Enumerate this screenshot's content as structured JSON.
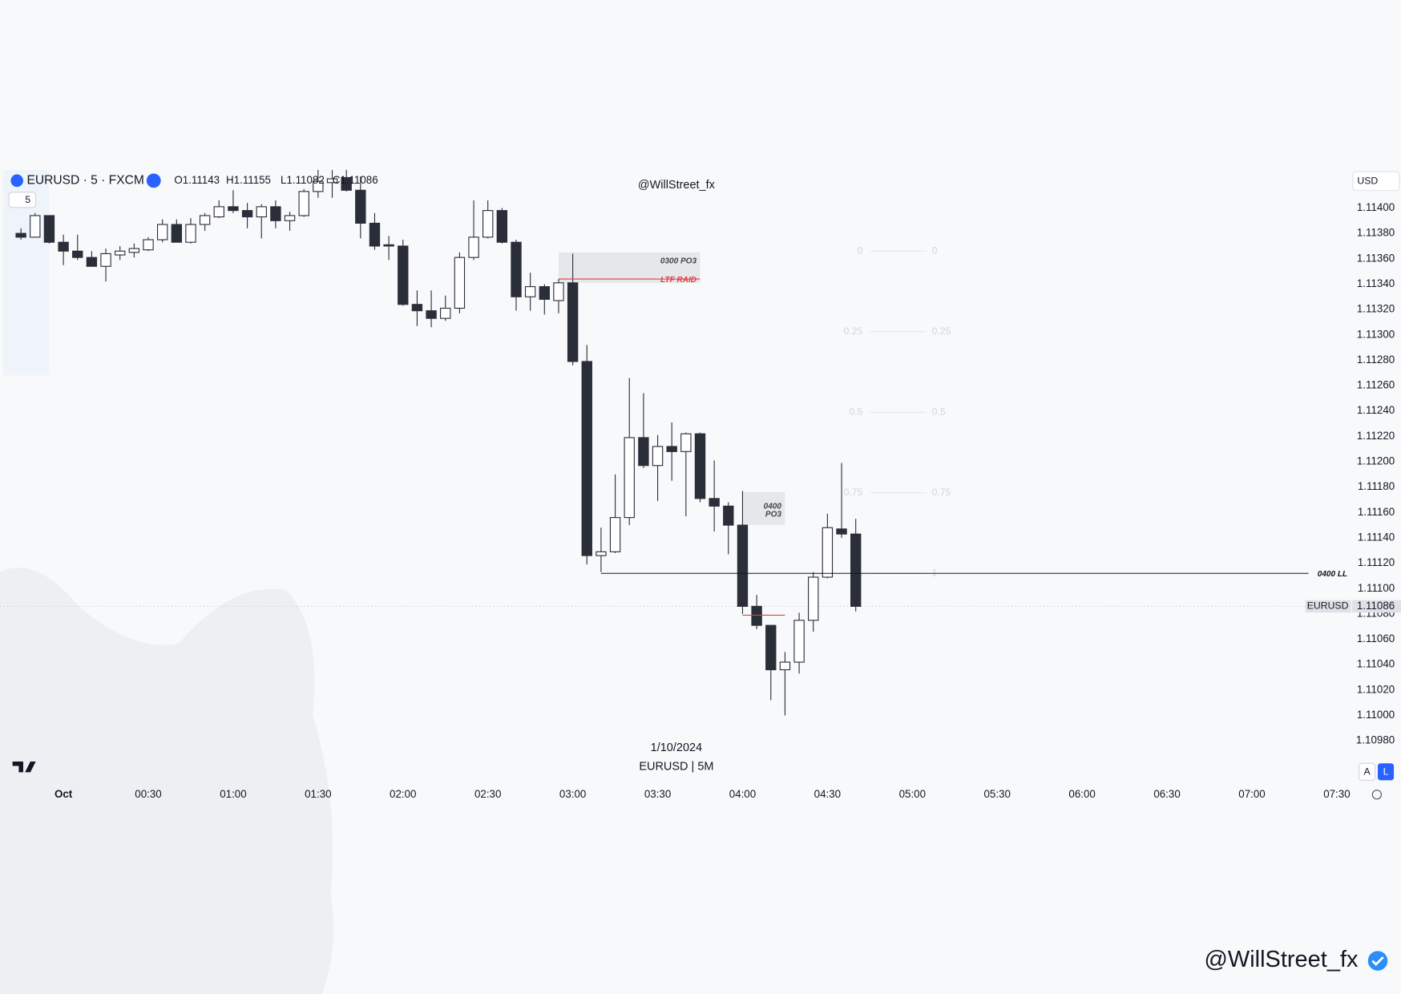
{
  "header": {
    "symbol": "EURUSD · 5 · FXCM",
    "interval": "5",
    "ohlc": [
      "O1.11143",
      "H1.11155",
      "L1.11082",
      "C1.11086"
    ],
    "watermark": "@WillStreet_fx",
    "currency": "USD",
    "buttons": [
      "A",
      "L"
    ]
  },
  "footer": {
    "date": "1/10/2024",
    "caption": "EURUSD | 5M",
    "signature": "@WillStreet_fx"
  },
  "chart_data": {
    "type": "candlestick",
    "up_color": "#ffffff",
    "down_color": "#2a2e39",
    "grid": false,
    "xlim": [
      -22.4,
      455
    ],
    "ylim": [
      1.10951,
      1.1143
    ],
    "xticks": [
      {
        "value": 0,
        "label": "Oct"
      },
      {
        "value": 30,
        "label": "00:30"
      },
      {
        "value": 60,
        "label": "01:00"
      },
      {
        "value": 90,
        "label": "01:30"
      },
      {
        "value": 120,
        "label": "02:00"
      },
      {
        "value": 150,
        "label": "02:30"
      },
      {
        "value": 180,
        "label": "03:00"
      },
      {
        "value": 210,
        "label": "03:30"
      },
      {
        "value": 240,
        "label": "04:00"
      },
      {
        "value": 270,
        "label": "04:30"
      },
      {
        "value": 300,
        "label": "05:00"
      },
      {
        "value": 330,
        "label": "05:30"
      },
      {
        "value": 360,
        "label": "06:00"
      },
      {
        "value": 390,
        "label": "06:30"
      },
      {
        "value": 420,
        "label": "07:00"
      },
      {
        "value": 450,
        "label": "07:30"
      }
    ],
    "yticks": [
      {
        "value": 1.1098,
        "label": "1.10980"
      },
      {
        "value": 1.11,
        "label": "1.11000"
      },
      {
        "value": 1.1102,
        "label": "1.11020"
      },
      {
        "value": 1.1104,
        "label": "1.11040"
      },
      {
        "value": 1.1106,
        "label": "1.11060"
      },
      {
        "value": 1.1108,
        "label": "1.11080"
      },
      {
        "value": 1.111,
        "label": "1.11100"
      },
      {
        "value": 1.1112,
        "label": "1.11120"
      },
      {
        "value": 1.1114,
        "label": "1.11140"
      },
      {
        "value": 1.1116,
        "label": "1.11160"
      },
      {
        "value": 1.1118,
        "label": "1.11180"
      },
      {
        "value": 1.112,
        "label": "1.11200"
      },
      {
        "value": 1.1122,
        "label": "1.11220"
      },
      {
        "value": 1.1124,
        "label": "1.11240"
      },
      {
        "value": 1.1126,
        "label": "1.11260"
      },
      {
        "value": 1.1128,
        "label": "1.11280"
      },
      {
        "value": 1.113,
        "label": "1.11300"
      },
      {
        "value": 1.1132,
        "label": "1.11320"
      },
      {
        "value": 1.1134,
        "label": "1.11340"
      },
      {
        "value": 1.1136,
        "label": "1.11360"
      },
      {
        "value": 1.1138,
        "label": "1.11380"
      },
      {
        "value": 1.114,
        "label": "1.11400"
      }
    ],
    "x": [
      -15,
      -10,
      -5,
      0,
      5,
      10,
      15,
      20,
      25,
      30,
      35,
      40,
      45,
      50,
      55,
      60,
      65,
      70,
      75,
      80,
      85,
      90,
      95,
      100,
      105,
      110,
      115,
      120,
      125,
      130,
      135,
      140,
      145,
      150,
      155,
      160,
      165,
      170,
      175,
      180,
      185,
      190,
      195,
      200,
      205,
      210,
      215,
      220,
      225,
      230,
      235,
      240,
      245,
      250,
      255,
      260,
      265,
      270,
      275,
      280
    ],
    "open": [
      1.1138,
      1.11377,
      1.11394,
      1.11373,
      1.11366,
      1.11361,
      1.11354,
      1.11363,
      1.11365,
      1.11367,
      1.11375,
      1.11387,
      1.11373,
      1.11387,
      1.11393,
      1.11401,
      1.11398,
      1.11393,
      1.11401,
      1.1139,
      1.11394,
      1.11413,
      1.1142,
      1.11424,
      1.11414,
      1.11388,
      1.11371,
      1.1137,
      1.11324,
      1.11319,
      1.11313,
      1.11321,
      1.11361,
      1.11377,
      1.11398,
      1.11373,
      1.1133,
      1.11338,
      1.11327,
      1.11341,
      1.11279,
      1.11126,
      1.11129,
      1.11156,
      1.11219,
      1.11197,
      1.11212,
      1.11208,
      1.11222,
      1.11171,
      1.11165,
      1.1115,
      1.11086,
      1.11071,
      1.11036,
      1.11042,
      1.11075,
      1.11109,
      1.11147,
      1.11143
    ],
    "high": [
      1.11384,
      1.11396,
      1.11394,
      1.11379,
      1.11379,
      1.11366,
      1.11368,
      1.1137,
      1.11372,
      1.11377,
      1.11391,
      1.11391,
      1.11392,
      1.11396,
      1.11406,
      1.11414,
      1.11404,
      1.11403,
      1.11406,
      1.11397,
      1.11415,
      1.1143,
      1.1143,
      1.1143,
      1.11425,
      1.11396,
      1.11378,
      1.11375,
      1.11335,
      1.11335,
      1.11331,
      1.11365,
      1.11406,
      1.11406,
      1.114,
      1.11375,
      1.11349,
      1.1134,
      1.11344,
      1.11364,
      1.11292,
      1.11148,
      1.1119,
      1.11266,
      1.11254,
      1.11221,
      1.11231,
      1.11223,
      1.11223,
      1.11201,
      1.11168,
      1.11177,
      1.11095,
      1.11071,
      1.1105,
      1.11081,
      1.11113,
      1.11159,
      1.11199,
      1.11155
    ],
    "low": [
      1.11375,
      1.11377,
      1.11372,
      1.11355,
      1.11359,
      1.11354,
      1.11342,
      1.11359,
      1.11361,
      1.11366,
      1.11373,
      1.11373,
      1.11372,
      1.11382,
      1.11392,
      1.11396,
      1.11384,
      1.11376,
      1.11384,
      1.11382,
      1.11393,
      1.11408,
      1.11408,
      1.11413,
      1.11376,
      1.11367,
      1.11359,
      1.11323,
      1.11307,
      1.11306,
      1.11311,
      1.11317,
      1.11359,
      1.11376,
      1.11372,
      1.11319,
      1.11319,
      1.11316,
      1.11317,
      1.11276,
      1.11119,
      1.11113,
      1.11128,
      1.1115,
      1.11195,
      1.11169,
      1.11185,
      1.11157,
      1.11168,
      1.11145,
      1.11127,
      1.1108,
      1.11068,
      1.11012,
      1.11,
      1.11033,
      1.11066,
      1.11108,
      1.1114,
      1.11082
    ],
    "close": [
      1.11377,
      1.11394,
      1.11373,
      1.11366,
      1.11361,
      1.11354,
      1.11364,
      1.11366,
      1.11368,
      1.11375,
      1.11387,
      1.11373,
      1.11387,
      1.11394,
      1.11401,
      1.11398,
      1.11393,
      1.11401,
      1.1139,
      1.11394,
      1.11413,
      1.11421,
      1.11423,
      1.11414,
      1.11388,
      1.1137,
      1.1137,
      1.11324,
      1.11319,
      1.11313,
      1.11321,
      1.11361,
      1.11377,
      1.11398,
      1.11373,
      1.1133,
      1.11338,
      1.11328,
      1.11341,
      1.11279,
      1.11126,
      1.11129,
      1.11156,
      1.11219,
      1.11197,
      1.11212,
      1.11208,
      1.11222,
      1.11171,
      1.11165,
      1.1115,
      1.11086,
      1.11071,
      1.11036,
      1.11042,
      1.11075,
      1.11109,
      1.11148,
      1.11143,
      1.11086
    ],
    "last_price": {
      "symbol": "EURUSD",
      "value": 1.11086,
      "label": "1.11086"
    },
    "boxes": [
      {
        "label": "0300 PO3",
        "x": [
          175,
          225
        ],
        "y": [
          1.11341,
          1.11365
        ]
      },
      {
        "lines": [
          "0400",
          "PO3"
        ],
        "x": [
          240,
          255
        ],
        "y": [
          1.1115,
          1.11176
        ]
      }
    ],
    "hlines": [
      {
        "label": "LTF RAID",
        "x": [
          175,
          225
        ],
        "y": 1.11344,
        "color": "#e0404a"
      },
      {
        "label": "0400 LL",
        "x": [
          190,
          440
        ],
        "y": 1.11112,
        "color": "#131722"
      },
      {
        "x": [
          240,
          255
        ],
        "y": 1.11079,
        "color": "#e0404a"
      }
    ],
    "fib": {
      "levels": [
        0,
        0.25,
        0.5,
        0.75,
        1
      ],
      "high": 1.11366,
      "low": 1.11112,
      "x": [
        285,
        305
      ]
    }
  }
}
